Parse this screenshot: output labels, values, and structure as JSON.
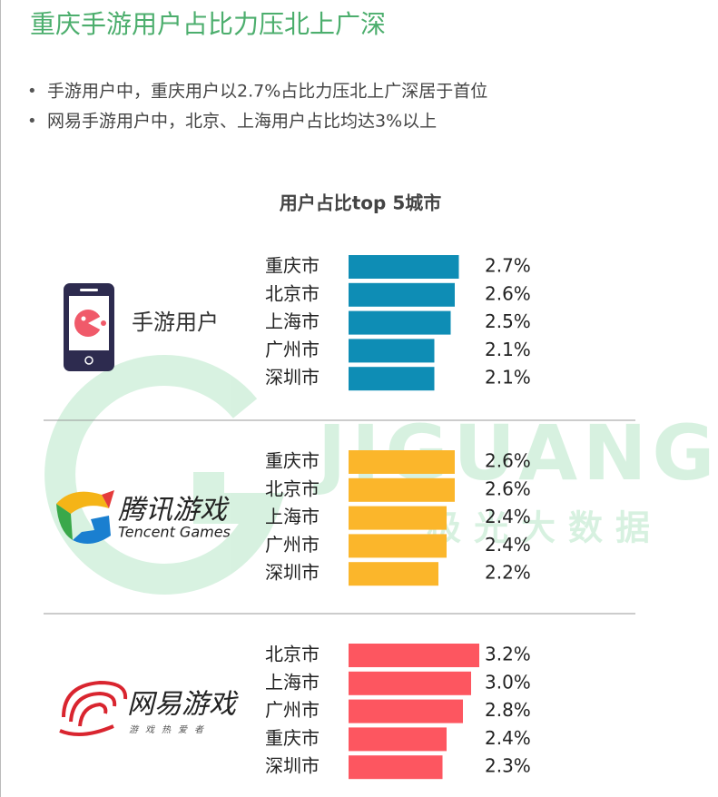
{
  "title": "重庆手游用户占比力压北上广深",
  "bullets": [
    "手游用户中，重庆用户以2.7%占比力压北上广深居于首位",
    "网易手游用户中，北京、上海用户占比均达3%以上"
  ],
  "watermark": {
    "brand": "JIGUANG",
    "name": "极光大数据"
  },
  "chart_data": [
    {
      "type": "bar",
      "title": "用户占比top 5城市",
      "label": "手游用户",
      "color": "#0e8db5",
      "categories": [
        "重庆市",
        "北京市",
        "上海市",
        "广州市",
        "深圳市"
      ],
      "values": [
        2.7,
        2.6,
        2.5,
        2.1,
        2.1
      ],
      "value_labels": [
        "2.7%",
        "2.6%",
        "2.5%",
        "2.1%",
        "2.1%"
      ]
    },
    {
      "type": "bar",
      "label": "腾讯游戏",
      "sublabel": "Tencent Games",
      "color": "#fbb62b",
      "categories": [
        "重庆市",
        "北京市",
        "上海市",
        "广州市",
        "深圳市"
      ],
      "values": [
        2.6,
        2.6,
        2.4,
        2.4,
        2.2
      ],
      "value_labels": [
        "2.6%",
        "2.6%",
        "2.4%",
        "2.4%",
        "2.2%"
      ]
    },
    {
      "type": "bar",
      "label": "网易游戏",
      "sublabel": "游戏热爱者",
      "color": "#fd5660",
      "categories": [
        "北京市",
        "上海市",
        "广州市",
        "重庆市",
        "深圳市"
      ],
      "values": [
        3.2,
        3.0,
        2.8,
        2.4,
        2.3
      ],
      "value_labels": [
        "3.2%",
        "3.0%",
        "2.8%",
        "2.4%",
        "2.3%"
      ]
    }
  ]
}
